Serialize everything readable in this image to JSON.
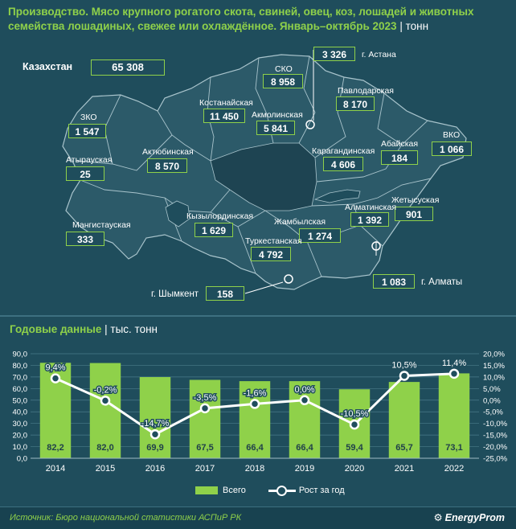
{
  "header": {
    "title": "Производство. Мясо крупного рогатого скота, свиней, овец, коз, лошадей и животных семейства лошадиных, свежее или охлаждённое. Январь–октябрь 2023",
    "separator": "|",
    "unit": "тонн"
  },
  "map": {
    "total": {
      "label": "Казахстан",
      "value": "65 308"
    },
    "regions": [
      {
        "id": "sko",
        "label": "СКО",
        "value": "8 958"
      },
      {
        "id": "astana",
        "label": "г. Астана",
        "value": "3 326"
      },
      {
        "id": "pavlodar",
        "label": "Павлодарская",
        "value": "8 170"
      },
      {
        "id": "kostanay",
        "label": "Костанайская",
        "value": "11 450"
      },
      {
        "id": "akmola",
        "label": "Акмолинская",
        "value": "5 841"
      },
      {
        "id": "zko",
        "label": "ЗКО",
        "value": "1 547"
      },
      {
        "id": "vko",
        "label": "ВКО",
        "value": "1 066"
      },
      {
        "id": "aktobe",
        "label": "Актюбинская",
        "value": "8 570"
      },
      {
        "id": "karaganda",
        "label": "Карагандинская",
        "value": "4 606"
      },
      {
        "id": "abai",
        "label": "Абайская",
        "value": "184"
      },
      {
        "id": "atyrau",
        "label": "Атырауская",
        "value": "25"
      },
      {
        "id": "zhetysu",
        "label": "Жетысуская",
        "value": "901"
      },
      {
        "id": "almaty_reg",
        "label": "Алматинская",
        "value": "1 392"
      },
      {
        "id": "kyzylorda",
        "label": "Кызылординская",
        "value": "1 629"
      },
      {
        "id": "zhambyl",
        "label": "Жамбылская",
        "value": "1 274"
      },
      {
        "id": "mangystau",
        "label": "Мангистауская",
        "value": "333"
      },
      {
        "id": "turkestan",
        "label": "Туркестанская",
        "value": "4 792"
      },
      {
        "id": "almaty_city",
        "label": "г. Алматы",
        "value": "1 083"
      },
      {
        "id": "shymkent",
        "label": "г. Шымкент",
        "value": "158"
      }
    ]
  },
  "chart_section": {
    "title": "Годовые данные",
    "separator": "|",
    "unit": "тыс. тонн"
  },
  "chart_data": {
    "type": "bar",
    "categories": [
      "2014",
      "2015",
      "2016",
      "2017",
      "2018",
      "2019",
      "2020",
      "2021",
      "2022"
    ],
    "series": [
      {
        "name": "Всего",
        "type": "bar",
        "axis": "left",
        "values": [
          82.2,
          82.0,
          69.9,
          67.5,
          66.4,
          66.4,
          59.4,
          65.7,
          73.1
        ],
        "labels": [
          "82,2",
          "82,0",
          "69,9",
          "67,5",
          "66,4",
          "66,4",
          "59,4",
          "65,7",
          "73,1"
        ]
      },
      {
        "name": "Рост за год",
        "type": "line",
        "axis": "right",
        "values": [
          9.4,
          -0.2,
          -14.7,
          -3.5,
          -1.6,
          0.0,
          -10.5,
          10.5,
          11.4
        ],
        "labels": [
          "9,4%",
          "-0,2%",
          "-14,7%",
          "-3,5%",
          "-1,6%",
          "0,0%",
          "-10,5%",
          "10,5%",
          "11,4%"
        ]
      }
    ],
    "ylim": [
      0,
      90
    ],
    "y_ticks": [
      "0,0",
      "10,0",
      "20,0",
      "30,0",
      "40,0",
      "50,0",
      "60,0",
      "70,0",
      "80,0",
      "90,0"
    ],
    "y2lim": [
      -25,
      20
    ],
    "y2_ticks": [
      "-25,0%",
      "-20,0%",
      "-15,0%",
      "-10,0%",
      "-5,0%",
      "0,0%",
      "5,0%",
      "10,0%",
      "15,0%",
      "20,0%"
    ],
    "grid": true,
    "legend": "bottom",
    "colors": {
      "bar": "#8fd14a",
      "line": "#ffffff"
    }
  },
  "footer": {
    "source": "Источник: Бюро национальной статистики АСПиР РК",
    "brand": "EnergyProm"
  }
}
